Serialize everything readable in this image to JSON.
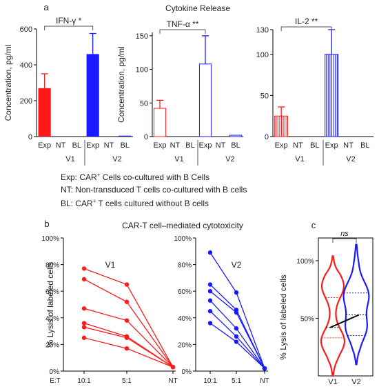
{
  "panel_labels": {
    "a": "a",
    "b": "b",
    "c": "c"
  },
  "panel_a_title": "Cytokine Release",
  "panel_b_title": "CAR-T cell–mediated cytotoxicity",
  "legend": [
    {
      "pre": "Exp: CAR",
      "sup": "+",
      "post": " Cells co-cultured with B Cells"
    },
    {
      "pre": "NT: Non-transduced T cells co-cultured with B cells",
      "sup": "",
      "post": ""
    },
    {
      "pre": "BL: CAR",
      "sup": "+",
      "post": " T cells cultured without B cells"
    }
  ],
  "colors": {
    "v1": "#ff1a1a",
    "v2": "#1a1aff",
    "black": "#000000",
    "grey": "#888888"
  },
  "chart_data": [
    {
      "type": "bar",
      "title": "IFN-γ",
      "significance": "*",
      "ylabel": "Concentration, pg/ml",
      "ylim": [
        0,
        600
      ],
      "yticks": [
        0,
        200,
        400,
        600
      ],
      "bar_style": "solid",
      "categories": [
        "Exp",
        "NT",
        "BL",
        "Exp",
        "NT",
        "BL"
      ],
      "groups": [
        "V1",
        "V2"
      ],
      "values": [
        270,
        0,
        0,
        460,
        0,
        5
      ],
      "errors": [
        80,
        0,
        0,
        115,
        0,
        0
      ]
    },
    {
      "type": "bar",
      "title": "TNF-α",
      "significance": "**",
      "ylabel": "Concentration, pg/ml",
      "ylim": [
        0,
        155
      ],
      "yticks": [
        0,
        50,
        100,
        150
      ],
      "bar_style": "open",
      "categories": [
        "Exp",
        "NT",
        "BL",
        "Exp",
        "NT",
        "BL"
      ],
      "groups": [
        "V1",
        "V2"
      ],
      "values": [
        42,
        0,
        0,
        108,
        0,
        2
      ],
      "errors": [
        12,
        0,
        0,
        42,
        0,
        0
      ]
    },
    {
      "type": "bar",
      "title": "IL-2",
      "significance": "**",
      "ylabel": "",
      "ylim": [
        0,
        130
      ],
      "yticks": [
        0,
        50,
        100,
        130
      ],
      "bar_style": "striped",
      "categories": [
        "Exp",
        "NT",
        "BL",
        "Exp",
        "NT",
        "BL"
      ],
      "groups": [
        "V1",
        "V2"
      ],
      "values": [
        25,
        0,
        0,
        100,
        0,
        0
      ],
      "errors": [
        11,
        0,
        0,
        30,
        0,
        0
      ]
    },
    {
      "type": "line",
      "panel_title": "V1",
      "ylabel": "% Lysis of labeled cells",
      "ylim": [
        0,
        100
      ],
      "yticks": [
        "0%",
        "20%",
        "40%",
        "60%",
        "80%",
        "100%"
      ],
      "x_prefix": "E:T",
      "x": [
        "10:1",
        "5:1",
        "NT"
      ],
      "series": [
        {
          "values": [
            77,
            65,
            3
          ]
        },
        {
          "values": [
            69,
            52,
            3
          ]
        },
        {
          "values": [
            47,
            38,
            3
          ]
        },
        {
          "values": [
            36,
            26,
            3
          ]
        },
        {
          "values": [
            33,
            25,
            3
          ]
        },
        {
          "values": [
            25,
            17,
            3
          ]
        }
      ]
    },
    {
      "type": "line",
      "panel_title": "V2",
      "ylim": [
        0,
        100
      ],
      "yticks": [
        "0%",
        "20%",
        "40%",
        "60%",
        "80%",
        "100%"
      ],
      "x": [
        "10:1",
        "5:1",
        "NT"
      ],
      "series": [
        {
          "values": [
            89,
            59,
            2
          ]
        },
        {
          "values": [
            65,
            46,
            2
          ]
        },
        {
          "values": [
            60,
            44,
            2
          ]
        },
        {
          "values": [
            53,
            32,
            2
          ]
        },
        {
          "values": [
            45,
            26,
            2
          ]
        },
        {
          "values": [
            36,
            22,
            2
          ]
        }
      ]
    },
    {
      "type": "violin",
      "ylabel": "% Lysis of labeled cells",
      "yticks": [
        "50%",
        "100%"
      ],
      "categories": [
        "V1",
        "V2"
      ],
      "significance": "ns",
      "medians": [
        42,
        53
      ],
      "quartiles": [
        [
          33,
          68
        ],
        [
          35,
          72
        ]
      ],
      "range": [
        [
          0,
          104
        ],
        [
          10,
          115
        ]
      ]
    }
  ]
}
